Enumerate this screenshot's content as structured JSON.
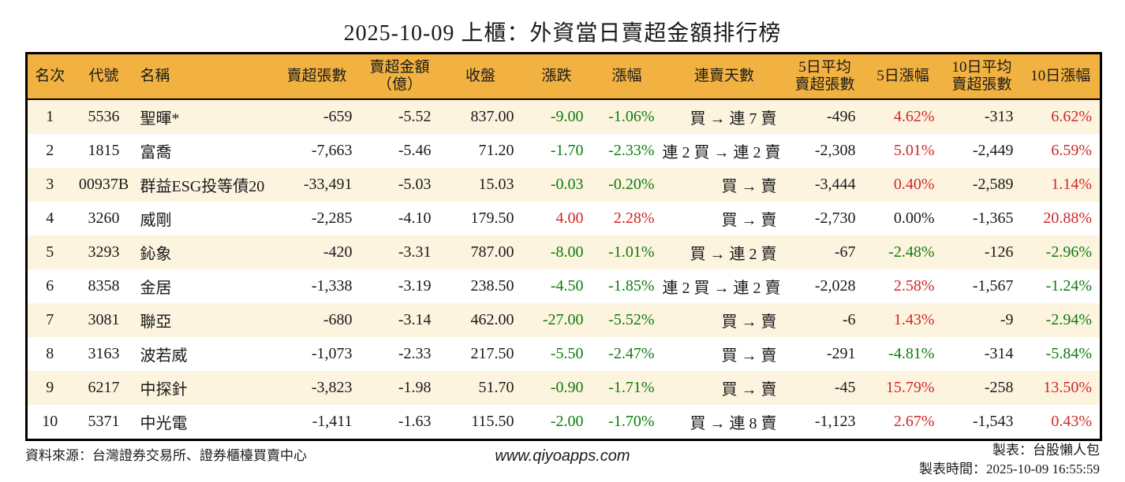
{
  "title": "2025-10-09 上櫃：外資當日賣超金額排行榜",
  "colors": {
    "up": "#cf2626",
    "down": "#0c7c0c",
    "flat": "#1a1a1a",
    "text": "#1a1a1a",
    "header_bg": "#f2b241",
    "row_alt_bg": "#fdf4df",
    "border": "#000000"
  },
  "chart_data": {
    "type": "table",
    "title": "2025-10-09 上櫃：外資當日賣超金額排行榜",
    "columns": [
      "名次",
      "代號",
      "名稱",
      "賣超張數",
      "賣超金額\n（億）",
      "收盤",
      "漲跌",
      "漲幅",
      "連賣天數",
      "5日平均\n賣超張數",
      "5日漲幅",
      "10日平均\n賣超張數",
      "10日漲幅"
    ],
    "rows": [
      {
        "rank": "1",
        "code": "5536",
        "name": "聖暉*",
        "sell_shares": "-659",
        "sell_amount": "-5.52",
        "close": "837.00",
        "change": "-9.00",
        "change_pct": "-1.06%",
        "change_dir": "down",
        "streak": "買 → 連 7 賣",
        "avg5": "-496",
        "pct5": "4.62%",
        "pct5_dir": "up",
        "avg10": "-313",
        "pct10": "6.62%",
        "pct10_dir": "up"
      },
      {
        "rank": "2",
        "code": "1815",
        "name": "富喬",
        "sell_shares": "-7,663",
        "sell_amount": "-5.46",
        "close": "71.20",
        "change": "-1.70",
        "change_pct": "-2.33%",
        "change_dir": "down",
        "streak": "連 2 買 → 連 2 賣",
        "avg5": "-2,308",
        "pct5": "5.01%",
        "pct5_dir": "up",
        "avg10": "-2,449",
        "pct10": "6.59%",
        "pct10_dir": "up"
      },
      {
        "rank": "3",
        "code": "00937B",
        "name": "群益ESG投等債20",
        "sell_shares": "-33,491",
        "sell_amount": "-5.03",
        "close": "15.03",
        "change": "-0.03",
        "change_pct": "-0.20%",
        "change_dir": "down",
        "streak": "買 → 賣",
        "avg5": "-3,444",
        "pct5": "0.40%",
        "pct5_dir": "up",
        "avg10": "-2,589",
        "pct10": "1.14%",
        "pct10_dir": "up"
      },
      {
        "rank": "4",
        "code": "3260",
        "name": "威剛",
        "sell_shares": "-2,285",
        "sell_amount": "-4.10",
        "close": "179.50",
        "change": "4.00",
        "change_pct": "2.28%",
        "change_dir": "up",
        "streak": "買 → 賣",
        "avg5": "-2,730",
        "pct5": "0.00%",
        "pct5_dir": "flat",
        "avg10": "-1,365",
        "pct10": "20.88%",
        "pct10_dir": "up"
      },
      {
        "rank": "5",
        "code": "3293",
        "name": "鈊象",
        "sell_shares": "-420",
        "sell_amount": "-3.31",
        "close": "787.00",
        "change": "-8.00",
        "change_pct": "-1.01%",
        "change_dir": "down",
        "streak": "買 → 連 2 賣",
        "avg5": "-67",
        "pct5": "-2.48%",
        "pct5_dir": "down",
        "avg10": "-126",
        "pct10": "-2.96%",
        "pct10_dir": "down"
      },
      {
        "rank": "6",
        "code": "8358",
        "name": "金居",
        "sell_shares": "-1,338",
        "sell_amount": "-3.19",
        "close": "238.50",
        "change": "-4.50",
        "change_pct": "-1.85%",
        "change_dir": "down",
        "streak": "連 2 買 → 連 2 賣",
        "avg5": "-2,028",
        "pct5": "2.58%",
        "pct5_dir": "up",
        "avg10": "-1,567",
        "pct10": "-1.24%",
        "pct10_dir": "down"
      },
      {
        "rank": "7",
        "code": "3081",
        "name": "聯亞",
        "sell_shares": "-680",
        "sell_amount": "-3.14",
        "close": "462.00",
        "change": "-27.00",
        "change_pct": "-5.52%",
        "change_dir": "down",
        "streak": "買 → 賣",
        "avg5": "-6",
        "pct5": "1.43%",
        "pct5_dir": "up",
        "avg10": "-9",
        "pct10": "-2.94%",
        "pct10_dir": "down"
      },
      {
        "rank": "8",
        "code": "3163",
        "name": "波若威",
        "sell_shares": "-1,073",
        "sell_amount": "-2.33",
        "close": "217.50",
        "change": "-5.50",
        "change_pct": "-2.47%",
        "change_dir": "down",
        "streak": "買 → 賣",
        "avg5": "-291",
        "pct5": "-4.81%",
        "pct5_dir": "down",
        "avg10": "-314",
        "pct10": "-5.84%",
        "pct10_dir": "down"
      },
      {
        "rank": "9",
        "code": "6217",
        "name": "中探針",
        "sell_shares": "-3,823",
        "sell_amount": "-1.98",
        "close": "51.70",
        "change": "-0.90",
        "change_pct": "-1.71%",
        "change_dir": "down",
        "streak": "買 → 賣",
        "avg5": "-45",
        "pct5": "15.79%",
        "pct5_dir": "up",
        "avg10": "-258",
        "pct10": "13.50%",
        "pct10_dir": "up"
      },
      {
        "rank": "10",
        "code": "5371",
        "name": "中光電",
        "sell_shares": "-1,411",
        "sell_amount": "-1.63",
        "close": "115.50",
        "change": "-2.00",
        "change_pct": "-1.70%",
        "change_dir": "down",
        "streak": "買 → 連 8 賣",
        "avg5": "-1,123",
        "pct5": "2.67%",
        "pct5_dir": "up",
        "avg10": "-1,543",
        "pct10": "0.43%",
        "pct10_dir": "up"
      }
    ]
  },
  "footer": {
    "source": "資料來源：台灣證券交易所、證券櫃檯買賣中心",
    "website": "www.qiyoapps.com",
    "author": "製表：台股懶人包",
    "generated_at": "製表時間：2025-10-09 16:55:59"
  }
}
